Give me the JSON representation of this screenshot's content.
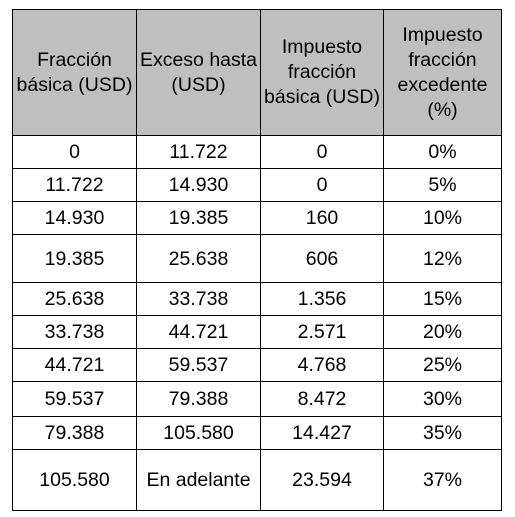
{
  "table": {
    "headers": [
      "Fracción básica (USD)",
      "Exceso hasta (USD)",
      "Impuesto fracción básica (USD)",
      "Impuesto fracción excedente (%)"
    ],
    "rows": [
      [
        "0",
        "11.722",
        "0",
        "0%"
      ],
      [
        "11.722",
        "14.930",
        "0",
        "5%"
      ],
      [
        "14.930",
        "19.385",
        "160",
        "10%"
      ],
      [
        "19.385",
        "25.638",
        "606",
        "12%"
      ],
      [
        "25.638",
        "33.738",
        "1.356",
        "15%"
      ],
      [
        "33.738",
        "44.721",
        "2.571",
        "20%"
      ],
      [
        "44.721",
        "59.537",
        "4.768",
        "25%"
      ],
      [
        "59.537",
        "79.388",
        "8.472",
        "30%"
      ],
      [
        "79.388",
        "105.580",
        "14.427",
        "35%"
      ],
      [
        "105.580",
        "En adelante",
        "23.594",
        "37%"
      ]
    ]
  },
  "colors": {
    "header_background": "#bfbfbf",
    "border": "#000000"
  }
}
